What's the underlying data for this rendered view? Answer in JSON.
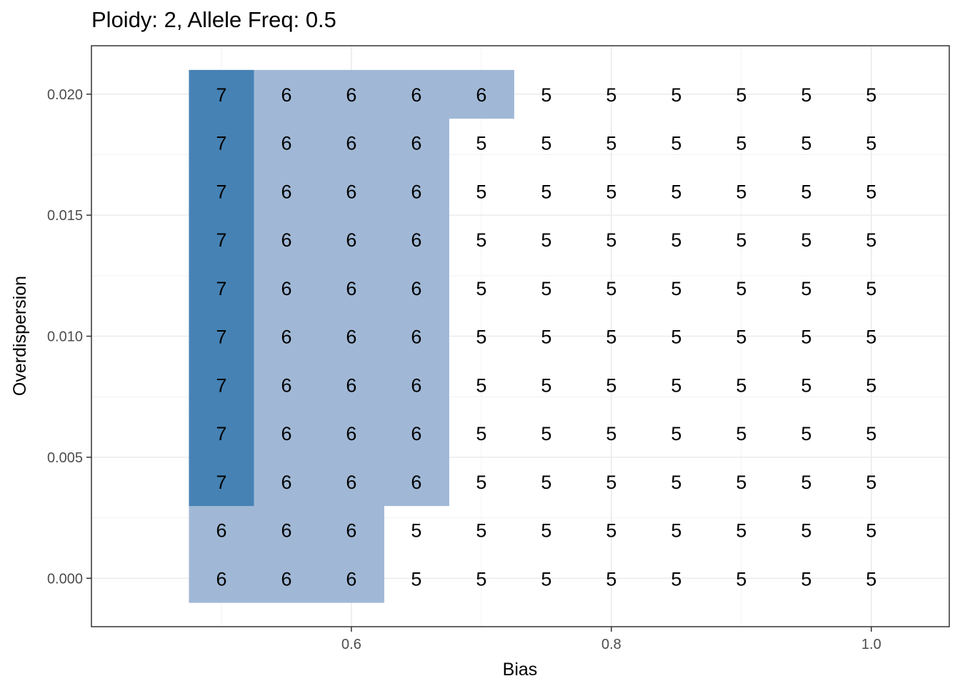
{
  "chart_data": {
    "type": "heatmap",
    "title": "Ploidy: 2, Allele Freq: 0.5",
    "xlabel": "Bias",
    "ylabel": "Overdispersion",
    "x": [
      0.5,
      0.55,
      0.6,
      0.65,
      0.7,
      0.75,
      0.8,
      0.85,
      0.9,
      0.95,
      1.0
    ],
    "y": [
      0.0,
      0.002,
      0.004,
      0.006,
      0.008,
      0.01,
      0.012,
      0.014,
      0.016,
      0.018,
      0.02
    ],
    "xlim": [
      0.4,
      1.06
    ],
    "ylim": [
      -0.002,
      0.022
    ],
    "x_ticks": [
      0.6,
      0.8,
      1.0
    ],
    "x_tick_labels": [
      "0.6",
      "0.8",
      "1.0"
    ],
    "y_ticks": [
      0.0,
      0.005,
      0.01,
      0.015,
      0.02
    ],
    "y_tick_labels": [
      "0.000",
      "0.005",
      "0.010",
      "0.015",
      "0.020"
    ],
    "grid": true,
    "values": [
      [
        6,
        6,
        6,
        5,
        5,
        5,
        5,
        5,
        5,
        5,
        5
      ],
      [
        6,
        6,
        6,
        5,
        5,
        5,
        5,
        5,
        5,
        5,
        5
      ],
      [
        7,
        6,
        6,
        6,
        5,
        5,
        5,
        5,
        5,
        5,
        5
      ],
      [
        7,
        6,
        6,
        6,
        5,
        5,
        5,
        5,
        5,
        5,
        5
      ],
      [
        7,
        6,
        6,
        6,
        5,
        5,
        5,
        5,
        5,
        5,
        5
      ],
      [
        7,
        6,
        6,
        6,
        5,
        5,
        5,
        5,
        5,
        5,
        5
      ],
      [
        7,
        6,
        6,
        6,
        5,
        5,
        5,
        5,
        5,
        5,
        5
      ],
      [
        7,
        6,
        6,
        6,
        5,
        5,
        5,
        5,
        5,
        5,
        5
      ],
      [
        7,
        6,
        6,
        6,
        5,
        5,
        5,
        5,
        5,
        5,
        5
      ],
      [
        7,
        6,
        6,
        6,
        5,
        5,
        5,
        5,
        5,
        5,
        5
      ],
      [
        7,
        6,
        6,
        6,
        6,
        5,
        5,
        5,
        5,
        5,
        5
      ]
    ],
    "colors": {
      "7": "#4682b4",
      "6": "#a0b8d6",
      "5": "#ffffff"
    }
  }
}
